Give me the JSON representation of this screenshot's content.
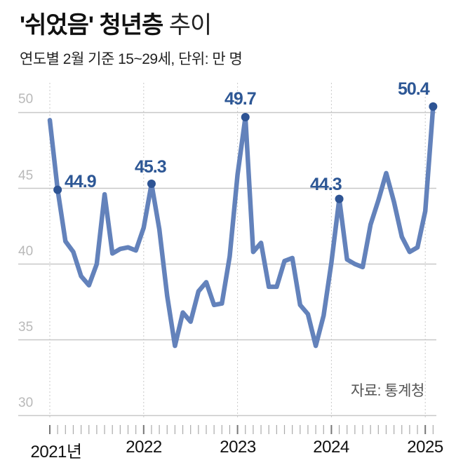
{
  "header": {
    "title_bold": "'쉬었음' 청년층",
    "title_light": " 추이",
    "subtitle": "연도별 2월 기준 15~29세, 단위: 만 명"
  },
  "source": "자료: 통계청",
  "colors": {
    "line": "#6382bb",
    "marker": "#2e5494",
    "label": "#2d5795",
    "grid": "#c8c8c8",
    "axis_text": "#b9b9b9"
  },
  "chart_data": {
    "type": "line",
    "title": "'쉬었음' 청년층 추이",
    "subtitle": "연도별 2월 기준 15~29세, 단위: 만 명",
    "xlabel": "",
    "ylabel": "만 명",
    "ylim": [
      30,
      50
    ],
    "yticks": [
      30,
      35,
      40,
      45,
      50
    ],
    "grid": true,
    "legend": "none",
    "x_tick_labels": [
      "2021년",
      "2022",
      "2023",
      "2024",
      "2025"
    ],
    "x": [
      "2021-01",
      "2021-02",
      "2021-03",
      "2021-04",
      "2021-05",
      "2021-06",
      "2021-07",
      "2021-08",
      "2021-09",
      "2021-10",
      "2021-11",
      "2021-12",
      "2022-01",
      "2022-02",
      "2022-03",
      "2022-04",
      "2022-05",
      "2022-06",
      "2022-07",
      "2022-08",
      "2022-09",
      "2022-10",
      "2022-11",
      "2022-12",
      "2023-01",
      "2023-02",
      "2023-03",
      "2023-04",
      "2023-05",
      "2023-06",
      "2023-07",
      "2023-08",
      "2023-09",
      "2023-10",
      "2023-11",
      "2023-12",
      "2024-01",
      "2024-02",
      "2024-03",
      "2024-04",
      "2024-05",
      "2024-06",
      "2024-07",
      "2024-08",
      "2024-09",
      "2024-10",
      "2024-11",
      "2024-12",
      "2025-01",
      "2025-02"
    ],
    "series": [
      {
        "name": "쉬었음 청년층",
        "values": [
          49.5,
          44.9,
          41.5,
          40.8,
          39.2,
          38.6,
          40.0,
          44.6,
          40.7,
          41.0,
          41.1,
          40.9,
          42.4,
          45.3,
          42.3,
          37.9,
          34.6,
          36.8,
          36.2,
          38.2,
          38.8,
          37.3,
          37.4,
          40.5,
          45.9,
          49.7,
          40.8,
          41.4,
          38.5,
          38.5,
          40.2,
          40.4,
          37.3,
          36.7,
          34.6,
          36.6,
          40.1,
          44.3,
          40.3,
          40.0,
          39.8,
          42.6,
          44.2,
          46.0,
          44.1,
          41.8,
          40.8,
          41.1,
          43.5,
          50.4
        ]
      }
    ],
    "annotations": [
      {
        "index": 1,
        "label": "44.9"
      },
      {
        "index": 13,
        "label": "45.3"
      },
      {
        "index": 25,
        "label": "49.7"
      },
      {
        "index": 37,
        "label": "44.3"
      },
      {
        "index": 49,
        "label": "50.4"
      }
    ]
  },
  "labels": {
    "y50": "50",
    "y45": "45",
    "y40": "40",
    "y35": "35",
    "y30": "30",
    "x2021": "2021년",
    "x2022": "2022",
    "x2023": "2023",
    "x2024": "2024",
    "x2025": "2025",
    "a2021": "44.9",
    "a2022": "45.3",
    "a2023": "49.7",
    "a2024": "44.3",
    "a2025": "50.4"
  }
}
